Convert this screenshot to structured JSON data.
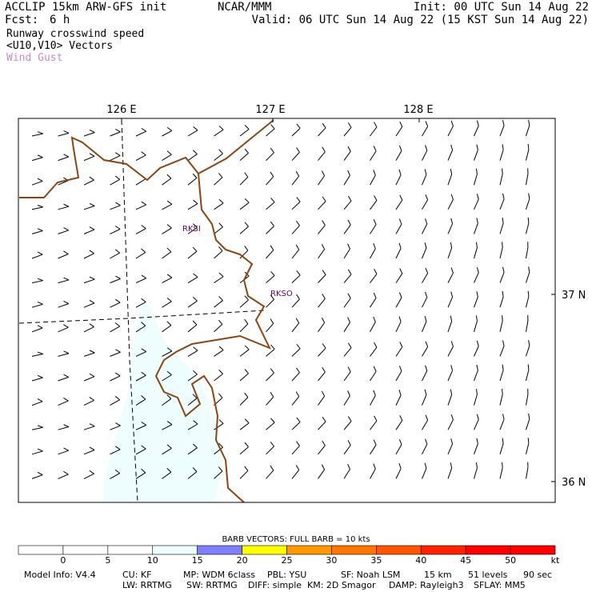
{
  "header": {
    "model_title": "ACCLIP 15km ARW-GFS init",
    "fcst_label": "Fcst:",
    "fcst_value": "6 h",
    "center": "NCAR/MMM",
    "init": "Init: 00 UTC Sun 14 Aug 22",
    "valid": "Valid: 06 UTC Sun 14 Aug 22 (15 KST Sun 14 Aug 22)",
    "field_1": "Runway crosswind speed",
    "field_2": "<U10,V10> Vectors",
    "field_3": "Wind Gust",
    "field_3_color": "#cc88cc"
  },
  "map": {
    "lon_labels": [
      "126 E",
      "127 E",
      "128 E"
    ],
    "lat_labels": [
      "37 N",
      "36 N"
    ],
    "stations": [
      "RKSI",
      "RKSO"
    ],
    "coast_color": "#8b4513",
    "gust_fill_color": "#eefefe",
    "station_color": "#660066"
  },
  "legend": {
    "caption": "BARB VECTORS:  FULL BARB = 10 kts",
    "ticks": [
      "0",
      "5",
      "10",
      "15",
      "20",
      "25",
      "30",
      "35",
      "40",
      "45",
      "50"
    ],
    "unit": "kt",
    "colors": [
      "#ffffff",
      "#ffffff",
      "#ffffff",
      "#eefefe",
      "#8080ff",
      "#ffff00",
      "#ff9900",
      "#ff7700",
      "#ff5500",
      "#ff2200",
      "#ff0000",
      "#ff0000"
    ]
  },
  "footer": {
    "line1": [
      "Model Info: V4.4",
      "CU: KF",
      "MP: WDM 6class",
      "PBL: YSU",
      "SF: Noah LSM",
      "15 km",
      "51 levels",
      "90 sec"
    ],
    "line2": [
      "LW: RRTMG",
      "SW: RRTMG",
      "DIFF: simple",
      "KM: 2D Smagor",
      "DAMP: Rayleigh3",
      "SFLAY: MM5"
    ]
  }
}
